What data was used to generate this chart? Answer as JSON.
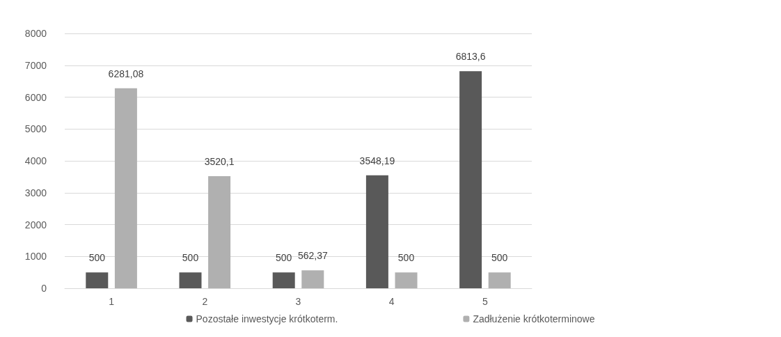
{
  "chart_data": {
    "type": "bar",
    "categories": [
      "1",
      "2",
      "3",
      "4",
      "5"
    ],
    "series": [
      {
        "name": "Pozostałe inwestycje krótkoterm.",
        "color": "#595959",
        "values": [
          500,
          500,
          500,
          3548.19,
          6813.6
        ],
        "value_labels": [
          "500",
          "500",
          "500",
          "3548,19",
          "6813,6"
        ]
      },
      {
        "name": "Zadłużenie krótkoterminowe",
        "color": "#b0b0b0",
        "values": [
          6281.08,
          3520.1,
          562.37,
          500,
          500
        ],
        "value_labels": [
          "6281,08",
          "3520,1",
          "562,37",
          "500",
          "500"
        ]
      }
    ],
    "ylim": [
      0,
      8000
    ],
    "yticks": [
      0,
      1000,
      2000,
      3000,
      4000,
      5000,
      6000,
      7000,
      8000
    ],
    "grid": "y",
    "legend": "bottom"
  }
}
